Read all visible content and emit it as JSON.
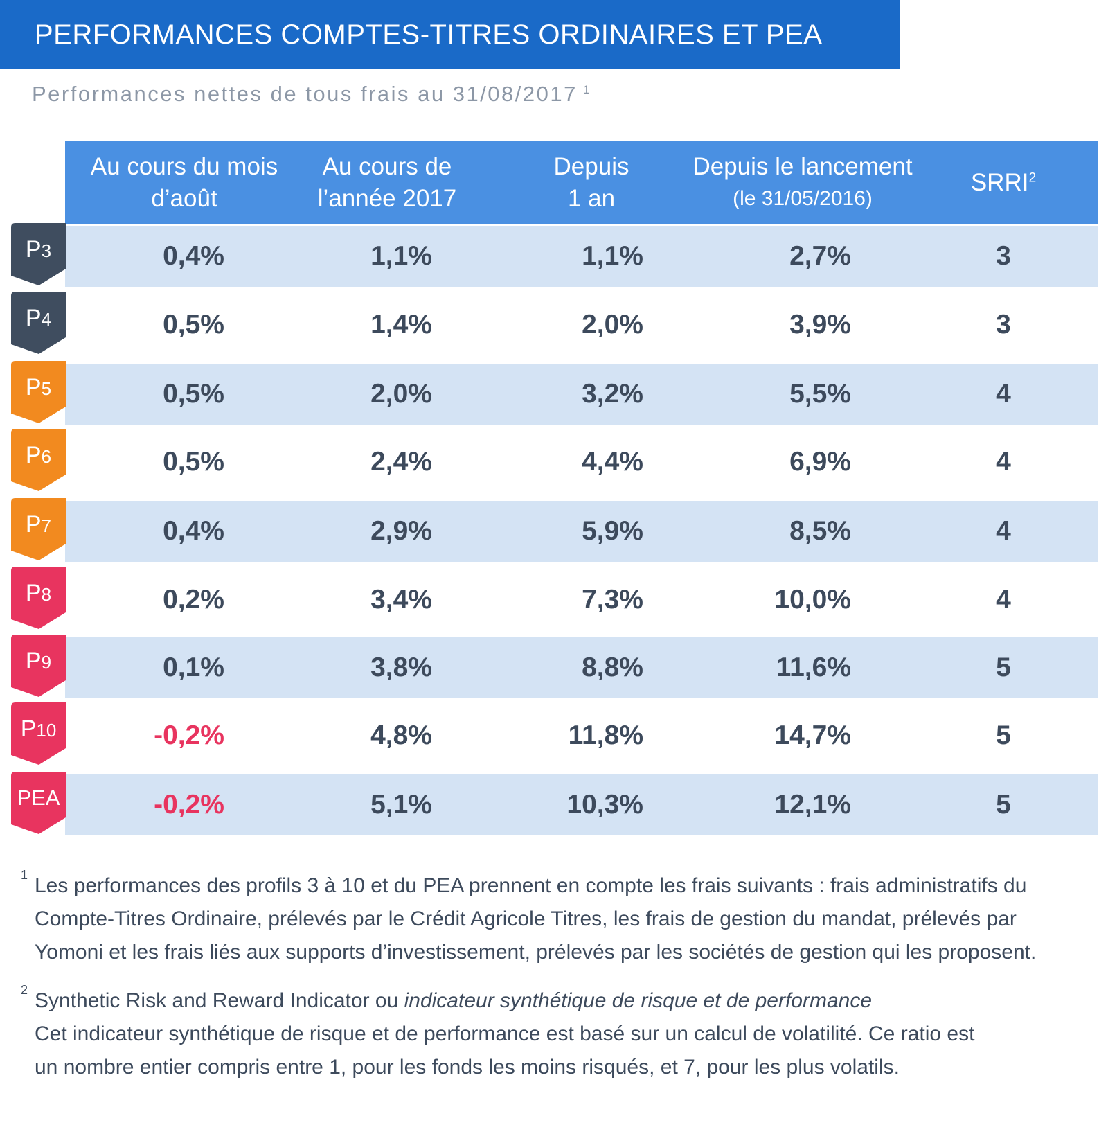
{
  "title": "PERFORMANCES COMPTES-TITRES ORDINAIRES ET PEA",
  "subtitle": "Performances nettes de tous frais au 31/08/2017",
  "subtitle_note": "1",
  "colors": {
    "banner": "#1a6ac8",
    "header": "#4a90e2",
    "band": "#d4e3f4",
    "text": "#3d4a5c",
    "negative": "#e8345f",
    "badge_dark": "#3f4d5f",
    "badge_orange": "#f28a1f",
    "badge_pink": "#e8345f"
  },
  "table": {
    "headers": {
      "month": [
        "Au cours du mois",
        "d’août"
      ],
      "year": [
        "Au cours de",
        "l’année 2017"
      ],
      "one_year": [
        "Depuis",
        "1 an"
      ],
      "launch": [
        "Depuis le lancement",
        "(le 31/05/2016)"
      ],
      "srri": "SRRI",
      "srri_note": "2"
    },
    "rows": [
      {
        "badge": "P",
        "badge_num": "3",
        "badge_color": "#3f4d5f",
        "month": "0,4%",
        "year": "1,1%",
        "one_year": "1,1%",
        "launch": "2,7%",
        "srri": "3"
      },
      {
        "badge": "P",
        "badge_num": "4",
        "badge_color": "#3f4d5f",
        "month": "0,5%",
        "year": "1,4%",
        "one_year": "2,0%",
        "launch": "3,9%",
        "srri": "3"
      },
      {
        "badge": "P",
        "badge_num": "5",
        "badge_color": "#f28a1f",
        "month": "0,5%",
        "year": "2,0%",
        "one_year": "3,2%",
        "launch": "5,5%",
        "srri": "4"
      },
      {
        "badge": "P",
        "badge_num": "6",
        "badge_color": "#f28a1f",
        "month": "0,5%",
        "year": "2,4%",
        "one_year": "4,4%",
        "launch": "6,9%",
        "srri": "4"
      },
      {
        "badge": "P",
        "badge_num": "7",
        "badge_color": "#f28a1f",
        "month": "0,4%",
        "year": "2,9%",
        "one_year": "5,9%",
        "launch": "8,5%",
        "srri": "4"
      },
      {
        "badge": "P",
        "badge_num": "8",
        "badge_color": "#e8345f",
        "month": "0,2%",
        "year": "3,4%",
        "one_year": "7,3%",
        "launch": "10,0%",
        "srri": "4"
      },
      {
        "badge": "P",
        "badge_num": "9",
        "badge_color": "#e8345f",
        "month": "0,1%",
        "year": "3,8%",
        "one_year": "8,8%",
        "launch": "11,6%",
        "srri": "5"
      },
      {
        "badge": "P",
        "badge_num": "10",
        "badge_color": "#e8345f",
        "month": "-0,2%",
        "year": "4,8%",
        "one_year": "11,8%",
        "launch": "14,7%",
        "srri": "5"
      },
      {
        "badge": "PEA",
        "badge_num": "",
        "badge_color": "#e8345f",
        "month": "-0,2%",
        "year": "5,1%",
        "one_year": "10,3%",
        "launch": "12,1%",
        "srri": "5"
      }
    ]
  },
  "notes": {
    "n1_mark": "1",
    "n1_lines": [
      "Les performances des profils 3 à 10 et du PEA prennent en compte les frais suivants : frais administratifs du",
      "Compte-Titres Ordinaire, prélevés par le Crédit Agricole Titres, les frais de gestion du mandat, prélevés par",
      "Yomoni et les frais liés aux supports d’investissement, prélevés par les sociétés de gestion qui les proposent."
    ],
    "n2_mark": "2",
    "n2_plain": "Synthetic Risk and Reward Indicator ou",
    "n2_italic": "indicateur synthétique de risque et de performance",
    "n2_lines": [
      "Cet indicateur synthétique de risque et de performance est basé sur un calcul de volatilité. Ce ratio est",
      "un nombre entier compris entre 1, pour les fonds les moins risqués, et 7, pour les plus volatils."
    ]
  }
}
